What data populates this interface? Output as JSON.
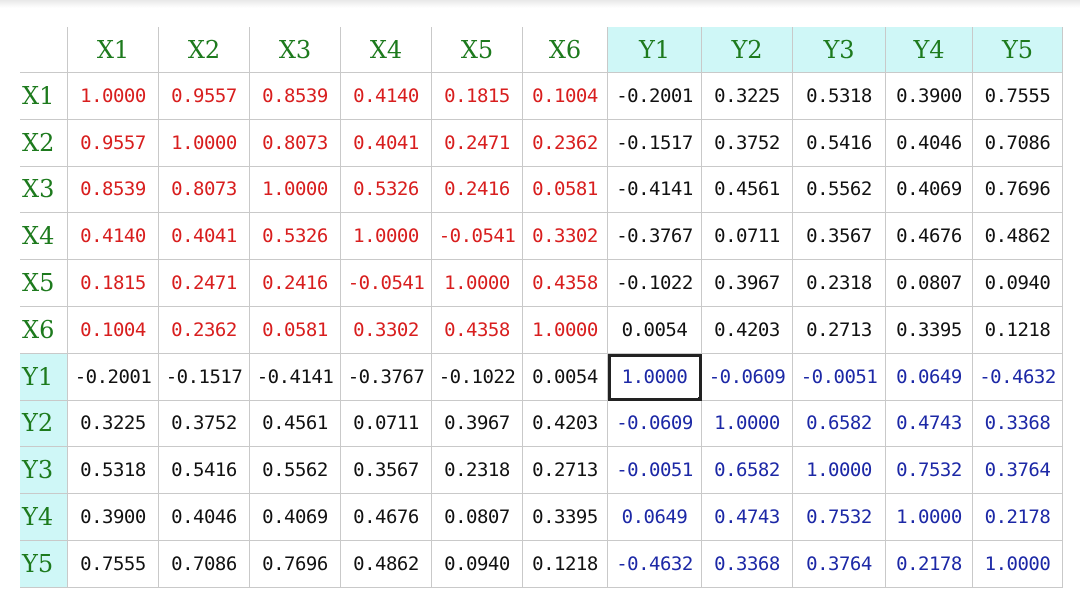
{
  "headers": [
    "X1",
    "X2",
    "X3",
    "X4",
    "X5",
    "X6",
    "Y1",
    "Y2",
    "Y3",
    "Y4",
    "Y5"
  ],
  "rows": [
    {
      "label": "X1",
      "values": [
        "1.0000",
        "0.9557",
        "0.8539",
        "0.4140",
        "0.1815",
        "0.1004",
        "-0.2001",
        "0.3225",
        "0.5318",
        "0.3900",
        "0.7555"
      ]
    },
    {
      "label": "X2",
      "values": [
        "0.9557",
        "1.0000",
        "0.8073",
        "0.4041",
        "0.2471",
        "0.2362",
        "-0.1517",
        "0.3752",
        "0.5416",
        "0.4046",
        "0.7086"
      ]
    },
    {
      "label": "X3",
      "values": [
        "0.8539",
        "0.8073",
        "1.0000",
        "0.5326",
        "0.2416",
        "0.0581",
        "-0.4141",
        "0.4561",
        "0.5562",
        "0.4069",
        "0.7696"
      ]
    },
    {
      "label": "X4",
      "values": [
        "0.4140",
        "0.4041",
        "0.5326",
        "1.0000",
        "-0.0541",
        "0.3302",
        "-0.3767",
        "0.0711",
        "0.3567",
        "0.4676",
        "0.4862"
      ]
    },
    {
      "label": "X5",
      "values": [
        "0.1815",
        "0.2471",
        "0.2416",
        "-0.0541",
        "1.0000",
        "0.4358",
        "-0.1022",
        "0.3967",
        "0.2318",
        "0.0807",
        "0.0940"
      ]
    },
    {
      "label": "X6",
      "values": [
        "0.1004",
        "0.2362",
        "0.0581",
        "0.3302",
        "0.4358",
        "1.0000",
        "0.0054",
        "0.4203",
        "0.2713",
        "0.3395",
        "0.1218"
      ]
    },
    {
      "label": "Y1",
      "values": [
        "-0.2001",
        "-0.1517",
        "-0.4141",
        "-0.3767",
        "-0.1022",
        "0.0054",
        "1.0000",
        "-0.0609",
        "-0.0051",
        "0.0649",
        "-0.4632"
      ]
    },
    {
      "label": "Y2",
      "values": [
        "0.3225",
        "0.3752",
        "0.4561",
        "0.0711",
        "0.3967",
        "0.4203",
        "-0.0609",
        "1.0000",
        "0.6582",
        "0.4743",
        "0.3368"
      ]
    },
    {
      "label": "Y3",
      "values": [
        "0.5318",
        "0.5416",
        "0.5562",
        "0.3567",
        "0.2318",
        "0.2713",
        "-0.0051",
        "0.6582",
        "1.0000",
        "0.7532",
        "0.3764"
      ]
    },
    {
      "label": "Y4",
      "values": [
        "0.3900",
        "0.4046",
        "0.4069",
        "0.4676",
        "0.0807",
        "0.3395",
        "0.0649",
        "0.4743",
        "0.7532",
        "1.0000",
        "0.2178"
      ]
    },
    {
      "label": "Y5",
      "values": [
        "0.7555",
        "0.7086",
        "0.7696",
        "0.4862",
        "0.0940",
        "0.1218",
        "-0.4632",
        "0.3368",
        "0.3764",
        "0.2178",
        "1.0000"
      ]
    }
  ],
  "selected_cell": "Y1,Y1",
  "colors": {
    "header_green": "#1d7a1d",
    "header_highlight": "#cff7f7",
    "x_block_red": "#d81e1e",
    "y_block_blue": "#1c28a6",
    "cross_black": "#111111"
  }
}
